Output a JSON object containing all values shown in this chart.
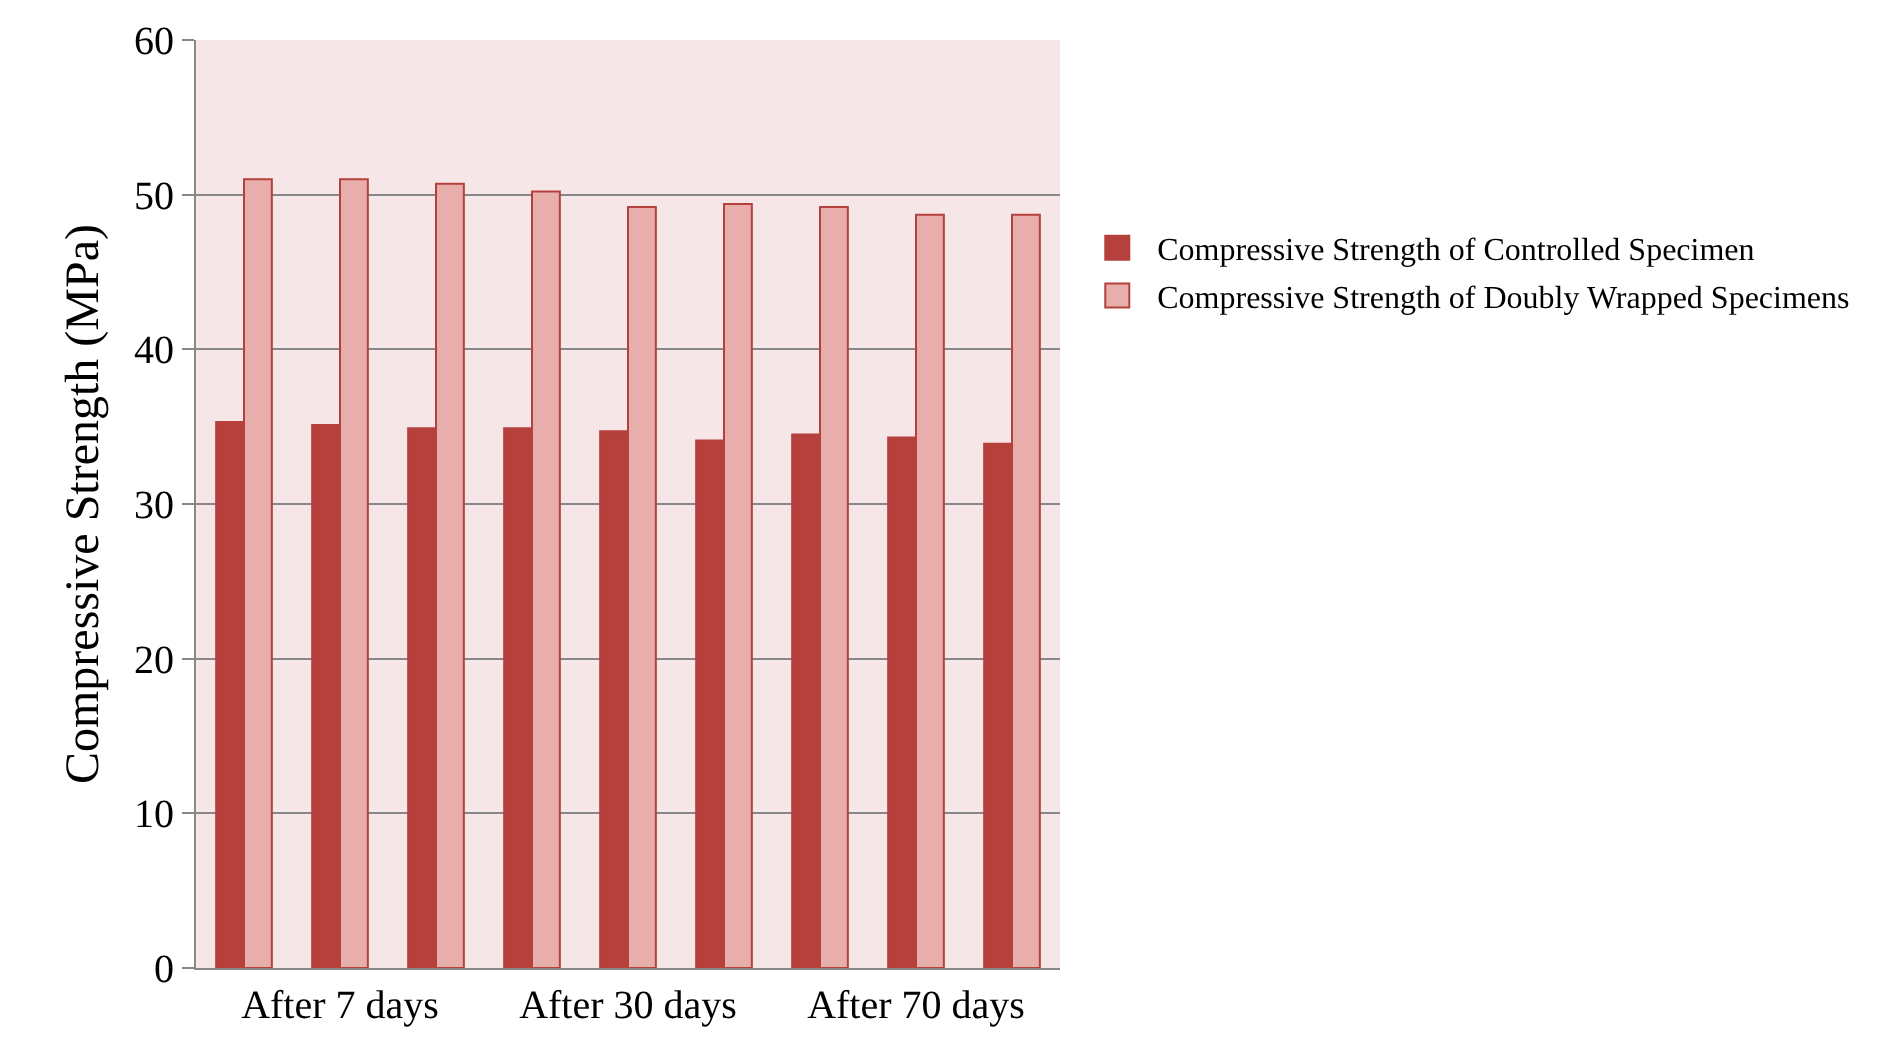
{
  "chart_data": {
    "type": "bar",
    "ylabel": "Compressive Strength (MPa)",
    "categories": [
      null,
      "After 7 days",
      null,
      null,
      "After 30 days",
      null,
      null,
      "After 70 days",
      null
    ],
    "series": [
      {
        "name": "Compressive Strength of Controlled Specimen",
        "color": "#b5403c",
        "values": [
          35.3,
          35.1,
          34.9,
          34.9,
          34.7,
          34.1,
          34.5,
          34.3,
          33.9
        ]
      },
      {
        "name": "Compressive Strength of Doubly Wrapped Specimens",
        "color": "#e8aeac",
        "values": [
          51.0,
          51.0,
          50.7,
          50.2,
          49.2,
          49.4,
          49.2,
          48.7,
          48.7
        ]
      }
    ],
    "ylim": [
      0,
      60
    ],
    "yticks": [
      0,
      10,
      20,
      30,
      40,
      50,
      60
    ],
    "grid": "y",
    "legend": "right"
  }
}
